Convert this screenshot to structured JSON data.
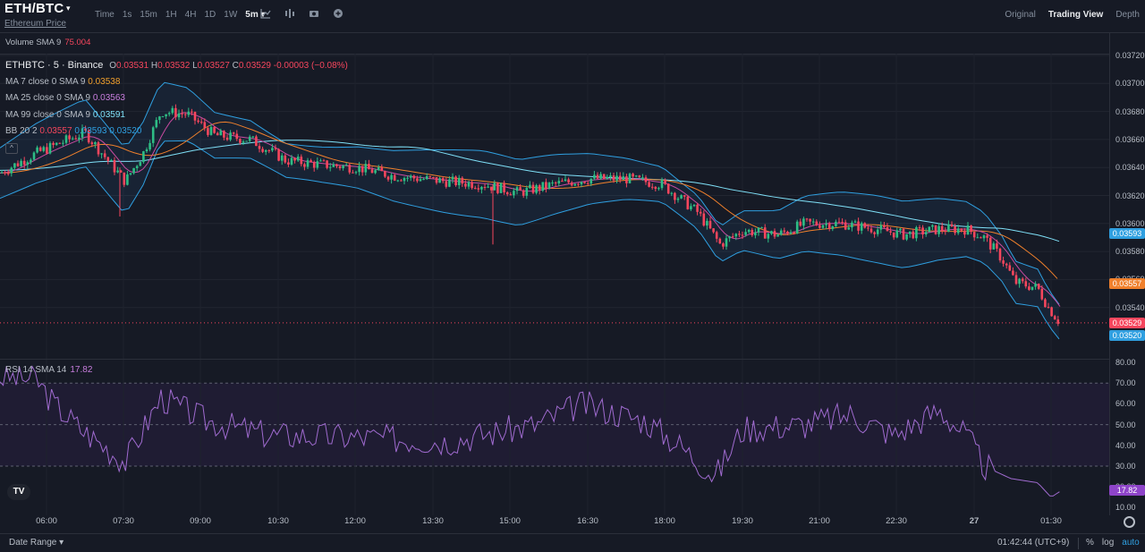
{
  "header": {
    "pair": "ETH/BTC",
    "pair_caret": "▾",
    "subtitle": "Ethereum Price",
    "intervals": [
      "Time",
      "1s",
      "15m",
      "1H",
      "4H",
      "1D",
      "1W",
      "5m ▾"
    ],
    "active_interval": "5m ▾",
    "tool_icons": [
      "chart-style-icon",
      "indicators-icon",
      "camera-icon",
      "plus-circle-icon"
    ],
    "views": [
      "Original",
      "Trading View",
      "Depth"
    ],
    "active_view": "Trading View"
  },
  "volume": {
    "label": "Volume SMA 9",
    "value": "75.004"
  },
  "legend": {
    "symbol": "ETHBTC · 5 · Binance",
    "ohlc": {
      "o_label": "O",
      "o": "0.03531",
      "h_label": "H",
      "h": "0.03532",
      "l_label": "L",
      "l": "0.03527",
      "c_label": "C",
      "c": "0.03529",
      "change": "-0.00003 (−0.08%)"
    },
    "ma7": {
      "label": "MA 7 close 0 SMA 9",
      "value": "0.03538"
    },
    "ma25": {
      "label": "MA 25 close 0 SMA 9",
      "value": "0.03563"
    },
    "ma99": {
      "label": "MA 99 close 0 SMA 9",
      "value": "0.03591"
    },
    "bb": {
      "label": "BB 20 2",
      "upper": "0.03557",
      "mid": "0.03593",
      "lower": "0.03520"
    },
    "collapse": "^"
  },
  "price_axis": [
    "0.03720",
    "0.03700",
    "0.03680",
    "0.03660",
    "0.03640",
    "0.03620",
    "0.03600",
    "0.03580",
    "0.03560",
    "0.03540"
  ],
  "price_tags": [
    {
      "text": "0.03593",
      "color": "#2f9fe0",
      "price": 0.03593
    },
    {
      "text": "0.03557",
      "color": "#f0802c",
      "price": 0.03557
    },
    {
      "text": "0.03529",
      "color": "#f6465d",
      "price": 0.03529
    },
    {
      "text": "0.03520",
      "color": "#2f9fe0",
      "price": 0.0352
    }
  ],
  "rsi": {
    "label": "RSI 14 SMA 14",
    "value": "17.82",
    "axis": [
      "80.00",
      "70.00",
      "60.00",
      "50.00",
      "40.00",
      "30.00",
      "20.00",
      "10.00"
    ],
    "tag": "17.82"
  },
  "time_axis": [
    "06:00",
    "07:30",
    "09:00",
    "10:30",
    "12:00",
    "13:30",
    "15:00",
    "16:30",
    "18:00",
    "19:30",
    "21:00",
    "22:30",
    "27",
    "01:30"
  ],
  "footer": {
    "date_range": "Date Range",
    "date_caret": "▾",
    "clock": "01:42:44 (UTC+9)",
    "percent": "%",
    "log": "log",
    "auto": "auto"
  },
  "logo": "TV",
  "colors": {
    "up": "#2ebd85",
    "down": "#f6465d",
    "bb": "#2f9fe0",
    "ma7": "#f6465d",
    "ma25": "#f0802c",
    "ma99": "#7fe0f7",
    "rsi": "#a06bd0"
  }
}
